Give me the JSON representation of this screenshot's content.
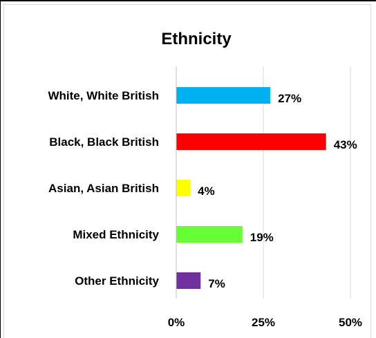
{
  "chart_data": {
    "type": "bar",
    "orientation": "horizontal",
    "title": "Ethnicity",
    "categories": [
      "White, White British",
      "Black, Black British",
      "Asian, Asian British",
      "Mixed Ethnicity",
      "Other Ethnicity"
    ],
    "values": [
      27,
      43,
      4,
      19,
      7
    ],
    "value_labels": [
      "27%",
      "43%",
      "4%",
      "19%",
      "7%"
    ],
    "colors": [
      "#00b0f0",
      "#ff0000",
      "#ffff00",
      "#66ff33",
      "#7030a0"
    ],
    "xlim": [
      0,
      50
    ],
    "xticks": [
      0,
      25,
      50
    ],
    "xtick_labels": [
      "0%",
      "25%",
      "50%"
    ],
    "grid": true,
    "legend": "none"
  }
}
